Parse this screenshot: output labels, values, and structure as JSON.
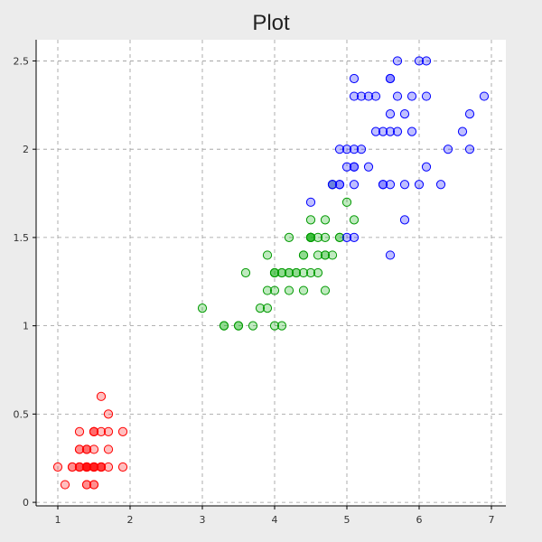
{
  "chart_data": {
    "type": "scatter",
    "title": "Plot",
    "xlabel": "",
    "ylabel": "",
    "xlim": [
      0.7,
      7.2
    ],
    "ylim": [
      -0.02,
      2.62
    ],
    "xticks": [
      1,
      2,
      3,
      4,
      5,
      6,
      7
    ],
    "yticks": [
      0,
      0.5,
      1,
      1.5,
      2,
      2.5
    ],
    "xtick_labels": [
      "1",
      "2",
      "3",
      "4",
      "5",
      "6",
      "7"
    ],
    "ytick_labels": [
      "0",
      "0.5",
      "1",
      "1.5",
      "2",
      "2.5"
    ],
    "grid": true,
    "series": [
      {
        "color": "#ff0000",
        "fill": "rgba(255,0,0,0.25)",
        "points": [
          [
            1.4,
            0.2
          ],
          [
            1.4,
            0.2
          ],
          [
            1.3,
            0.2
          ],
          [
            1.5,
            0.2
          ],
          [
            1.4,
            0.2
          ],
          [
            1.7,
            0.4
          ],
          [
            1.4,
            0.3
          ],
          [
            1.5,
            0.2
          ],
          [
            1.4,
            0.2
          ],
          [
            1.5,
            0.1
          ],
          [
            1.5,
            0.2
          ],
          [
            1.6,
            0.2
          ],
          [
            1.4,
            0.1
          ],
          [
            1.1,
            0.1
          ],
          [
            1.2,
            0.2
          ],
          [
            1.5,
            0.4
          ],
          [
            1.3,
            0.4
          ],
          [
            1.4,
            0.3
          ],
          [
            1.7,
            0.3
          ],
          [
            1.5,
            0.3
          ],
          [
            1.7,
            0.2
          ],
          [
            1.5,
            0.4
          ],
          [
            1.0,
            0.2
          ],
          [
            1.7,
            0.5
          ],
          [
            1.9,
            0.2
          ],
          [
            1.6,
            0.2
          ],
          [
            1.6,
            0.4
          ],
          [
            1.5,
            0.2
          ],
          [
            1.4,
            0.2
          ],
          [
            1.6,
            0.2
          ],
          [
            1.6,
            0.2
          ],
          [
            1.5,
            0.4
          ],
          [
            1.5,
            0.1
          ],
          [
            1.4,
            0.2
          ],
          [
            1.5,
            0.2
          ],
          [
            1.2,
            0.2
          ],
          [
            1.3,
            0.2
          ],
          [
            1.4,
            0.1
          ],
          [
            1.3,
            0.2
          ],
          [
            1.5,
            0.2
          ],
          [
            1.3,
            0.3
          ],
          [
            1.3,
            0.3
          ],
          [
            1.3,
            0.2
          ],
          [
            1.6,
            0.6
          ],
          [
            1.9,
            0.4
          ],
          [
            1.4,
            0.3
          ],
          [
            1.6,
            0.2
          ],
          [
            1.4,
            0.2
          ],
          [
            1.5,
            0.2
          ],
          [
            1.4,
            0.2
          ]
        ]
      },
      {
        "color": "#009900",
        "fill": "rgba(0,170,0,0.25)",
        "points": [
          [
            4.7,
            1.4
          ],
          [
            4.5,
            1.5
          ],
          [
            4.9,
            1.5
          ],
          [
            4.0,
            1.3
          ],
          [
            4.6,
            1.5
          ],
          [
            4.5,
            1.3
          ],
          [
            4.7,
            1.6
          ],
          [
            3.3,
            1.0
          ],
          [
            4.6,
            1.3
          ],
          [
            3.9,
            1.4
          ],
          [
            3.5,
            1.0
          ],
          [
            4.2,
            1.5
          ],
          [
            4.0,
            1.0
          ],
          [
            4.7,
            1.4
          ],
          [
            3.6,
            1.3
          ],
          [
            4.4,
            1.4
          ],
          [
            4.5,
            1.5
          ],
          [
            4.1,
            1.0
          ],
          [
            4.5,
            1.5
          ],
          [
            3.9,
            1.1
          ],
          [
            4.8,
            1.8
          ],
          [
            4.0,
            1.3
          ],
          [
            4.9,
            1.5
          ],
          [
            4.7,
            1.2
          ],
          [
            4.3,
            1.3
          ],
          [
            4.4,
            1.4
          ],
          [
            4.8,
            1.4
          ],
          [
            5.0,
            1.7
          ],
          [
            4.5,
            1.5
          ],
          [
            3.5,
            1.0
          ],
          [
            3.8,
            1.1
          ],
          [
            3.7,
            1.0
          ],
          [
            3.9,
            1.2
          ],
          [
            5.1,
            1.6
          ],
          [
            4.5,
            1.5
          ],
          [
            4.5,
            1.6
          ],
          [
            4.7,
            1.5
          ],
          [
            4.4,
            1.3
          ],
          [
            4.1,
            1.3
          ],
          [
            4.0,
            1.3
          ],
          [
            4.4,
            1.2
          ],
          [
            4.6,
            1.4
          ],
          [
            4.0,
            1.2
          ],
          [
            3.3,
            1.0
          ],
          [
            4.2,
            1.3
          ],
          [
            4.2,
            1.2
          ],
          [
            4.2,
            1.3
          ],
          [
            4.3,
            1.3
          ],
          [
            3.0,
            1.1
          ],
          [
            4.1,
            1.3
          ]
        ]
      },
      {
        "color": "#0000ff",
        "fill": "rgba(0,0,255,0.25)",
        "points": [
          [
            6.0,
            2.5
          ],
          [
            5.1,
            1.9
          ],
          [
            5.9,
            2.1
          ],
          [
            5.6,
            1.8
          ],
          [
            5.8,
            2.2
          ],
          [
            6.6,
            2.1
          ],
          [
            4.5,
            1.7
          ],
          [
            6.3,
            1.8
          ],
          [
            5.8,
            1.8
          ],
          [
            6.1,
            2.5
          ],
          [
            5.1,
            2.0
          ],
          [
            5.3,
            1.9
          ],
          [
            5.5,
            2.1
          ],
          [
            5.0,
            2.0
          ],
          [
            5.1,
            2.4
          ],
          [
            5.3,
            2.3
          ],
          [
            5.5,
            1.8
          ],
          [
            6.7,
            2.2
          ],
          [
            6.9,
            2.3
          ],
          [
            5.0,
            1.5
          ],
          [
            5.7,
            2.3
          ],
          [
            4.9,
            2.0
          ],
          [
            6.7,
            2.0
          ],
          [
            4.9,
            1.8
          ],
          [
            5.7,
            2.1
          ],
          [
            6.0,
            1.8
          ],
          [
            4.8,
            1.8
          ],
          [
            4.9,
            1.8
          ],
          [
            5.6,
            2.1
          ],
          [
            5.8,
            1.6
          ],
          [
            6.1,
            1.9
          ],
          [
            6.4,
            2.0
          ],
          [
            5.6,
            2.2
          ],
          [
            5.1,
            1.5
          ],
          [
            5.6,
            1.4
          ],
          [
            6.1,
            2.3
          ],
          [
            5.6,
            2.4
          ],
          [
            5.5,
            1.8
          ],
          [
            4.8,
            1.8
          ],
          [
            5.4,
            2.1
          ],
          [
            5.6,
            2.4
          ],
          [
            5.1,
            2.3
          ],
          [
            5.1,
            1.9
          ],
          [
            5.9,
            2.3
          ],
          [
            5.7,
            2.5
          ],
          [
            5.2,
            2.3
          ],
          [
            5.0,
            1.9
          ],
          [
            5.2,
            2.0
          ],
          [
            5.4,
            2.3
          ],
          [
            5.1,
            1.8
          ]
        ]
      }
    ]
  }
}
